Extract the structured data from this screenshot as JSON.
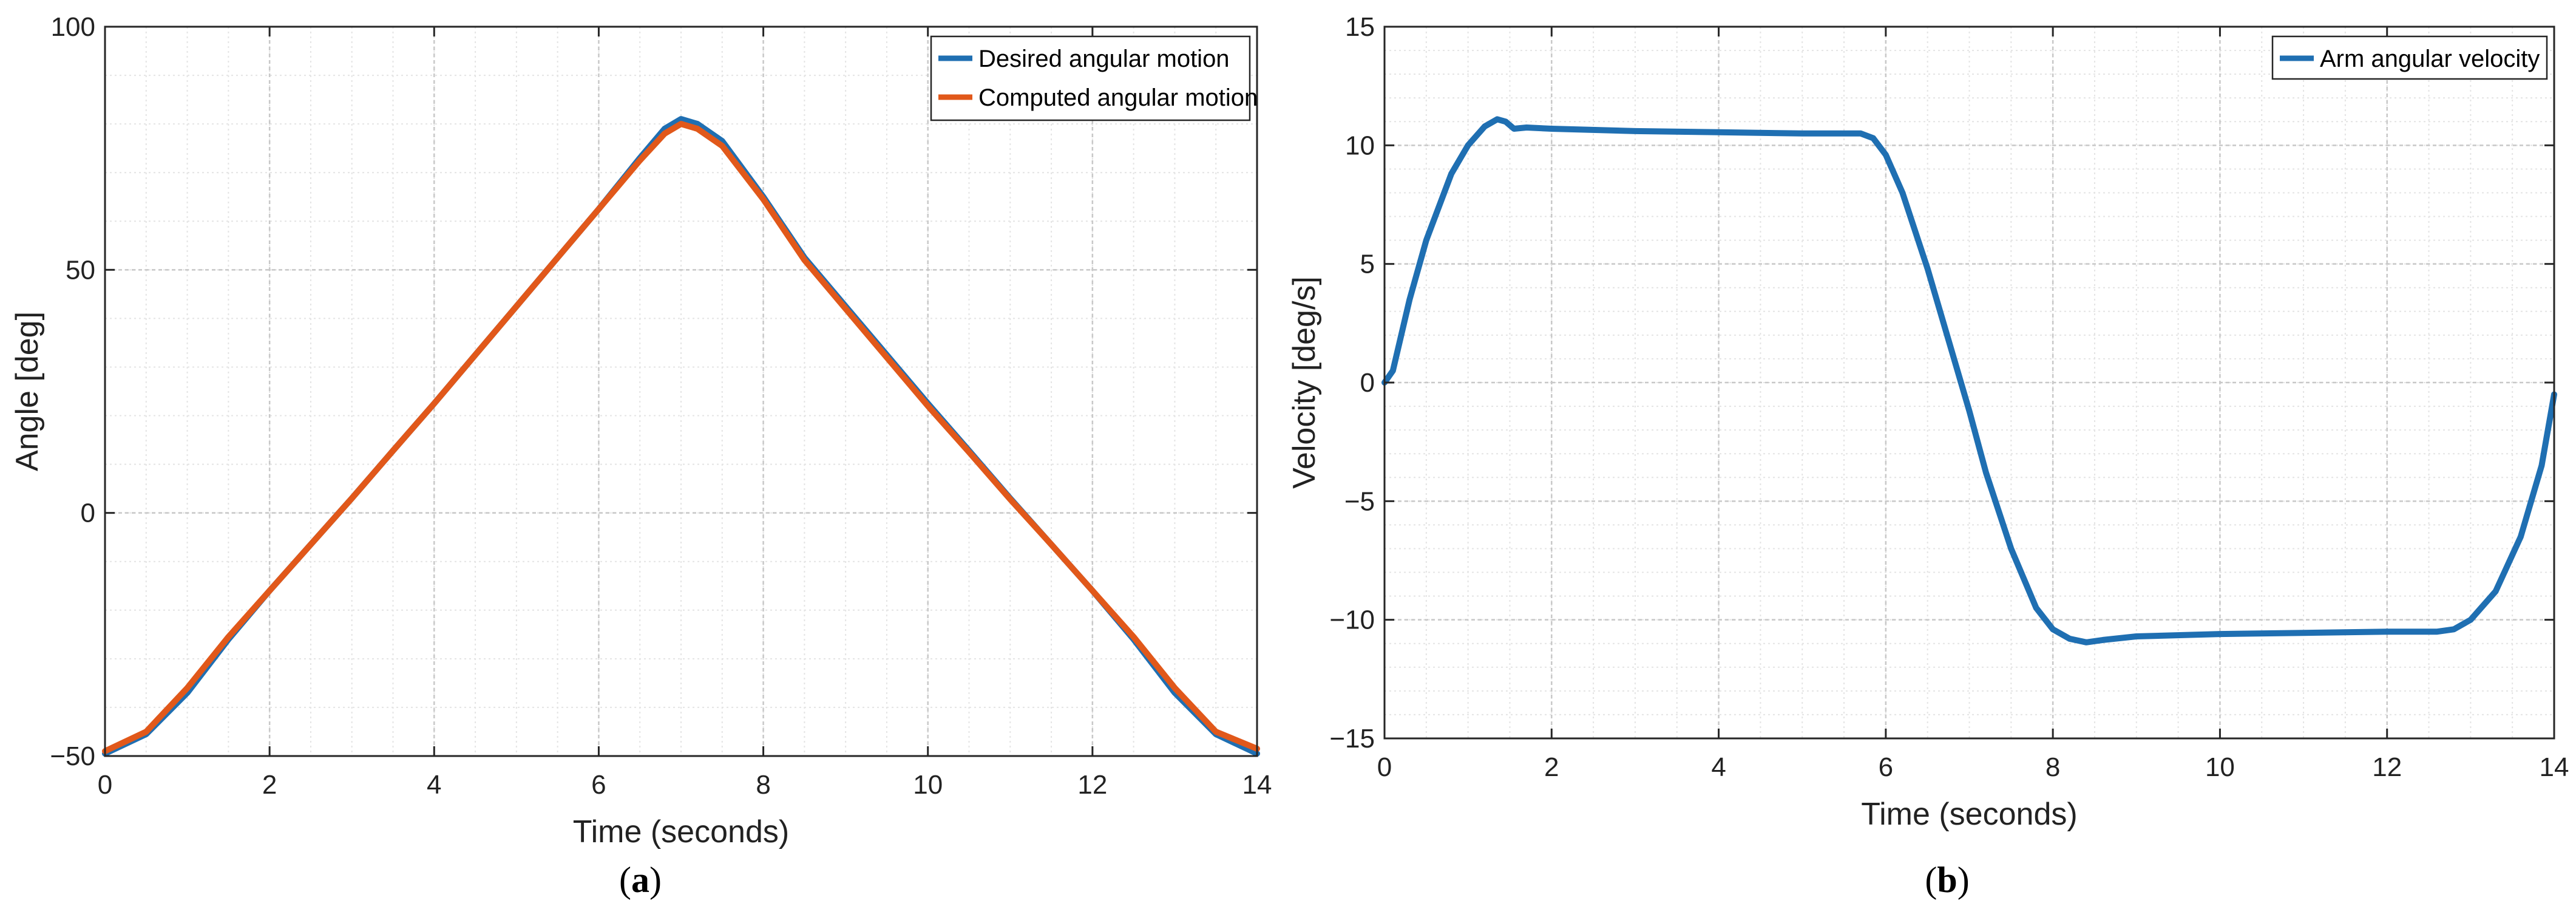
{
  "colors": {
    "desired": "#1f6fb2",
    "computed": "#e1581a",
    "velocity": "#1f6fb2",
    "grid_major": "#c8c8c8",
    "grid_minor": "#e4e4e4",
    "axis": "#262626"
  },
  "chart_data": [
    {
      "panel_label": "a",
      "type": "line",
      "title": "",
      "xlabel": "Time (seconds)",
      "ylabel": "Angle [deg]",
      "xlim": [
        0,
        14
      ],
      "ylim": [
        -50,
        100
      ],
      "xticks": [
        0,
        2,
        4,
        6,
        8,
        10,
        12,
        14
      ],
      "yticks": [
        -50,
        0,
        50,
        100
      ],
      "xtick_labels": [
        "0",
        "2",
        "4",
        "6",
        "8",
        "10",
        "12",
        "14"
      ],
      "ytick_labels": [
        "−50",
        "0",
        "50",
        "100"
      ],
      "grid": true,
      "minor_grid": true,
      "legend_position": "top-right",
      "series": [
        {
          "name": "Desired angular motion",
          "color_key": "desired",
          "x": [
            0,
            0.5,
            1,
            1.5,
            2,
            2.5,
            3,
            3.5,
            4,
            4.5,
            5,
            5.5,
            6,
            6.5,
            6.8,
            7,
            7.2,
            7.5,
            8,
            8.5,
            9,
            9.5,
            10,
            10.5,
            11,
            11.5,
            12,
            12.5,
            13,
            13.5,
            14
          ],
          "y": [
            -49.5,
            -45.5,
            -37,
            -26,
            -16,
            -6.5,
            3,
            12.8,
            22.5,
            32.5,
            42.5,
            52.5,
            62.5,
            73,
            79,
            81,
            80,
            76.5,
            65,
            52.5,
            42.5,
            32.5,
            22.5,
            12.8,
            3,
            -6.5,
            -16,
            -26,
            -37,
            -45.5,
            -49.5
          ]
        },
        {
          "name": "Computed angular motion",
          "color_key": "computed",
          "x": [
            0,
            0.5,
            1,
            1.5,
            2,
            2.5,
            3,
            3.5,
            4,
            4.5,
            5,
            5.5,
            6,
            6.5,
            6.8,
            7,
            7.2,
            7.5,
            8,
            8.5,
            9,
            9.5,
            10,
            10.5,
            11,
            11.5,
            12,
            12.5,
            13,
            13.5,
            14
          ],
          "y": [
            -49,
            -45,
            -36,
            -25.5,
            -16,
            -6.5,
            3,
            12.8,
            22.5,
            32.5,
            42.5,
            52.5,
            62.5,
            72.5,
            78,
            80,
            79,
            75.5,
            64.5,
            52,
            42,
            32,
            22,
            12.5,
            2.8,
            -6.5,
            -16,
            -25.5,
            -36,
            -45,
            -48.5
          ]
        }
      ]
    },
    {
      "panel_label": "b",
      "type": "line",
      "title": "",
      "xlabel": "Time (seconds)",
      "ylabel": "Velocity [deg/s]",
      "xlim": [
        0,
        14
      ],
      "ylim": [
        -15,
        15
      ],
      "xticks": [
        0,
        2,
        4,
        6,
        8,
        10,
        12,
        14
      ],
      "yticks": [
        -15,
        -10,
        -5,
        0,
        5,
        10,
        15
      ],
      "xtick_labels": [
        "0",
        "2",
        "4",
        "6",
        "8",
        "10",
        "12",
        "14"
      ],
      "ytick_labels": [
        "−15",
        "−10",
        "−5",
        "0",
        "5",
        "10",
        "15"
      ],
      "grid": true,
      "minor_grid": true,
      "legend_position": "top-right",
      "series": [
        {
          "name": "Arm angular velocity",
          "color_key": "velocity",
          "x": [
            0,
            0.1,
            0.3,
            0.5,
            0.8,
            1.0,
            1.2,
            1.35,
            1.45,
            1.55,
            1.7,
            2.0,
            3.0,
            4.0,
            5.0,
            5.5,
            5.7,
            5.85,
            6.0,
            6.2,
            6.5,
            6.8,
            7.0,
            7.2,
            7.5,
            7.8,
            8.0,
            8.2,
            8.4,
            8.6,
            9.0,
            10.0,
            11.0,
            12.0,
            12.6,
            12.8,
            13.0,
            13.3,
            13.6,
            13.85,
            14.0
          ],
          "y": [
            0,
            0.5,
            3.5,
            6,
            8.8,
            10,
            10.8,
            11.1,
            11.0,
            10.7,
            10.75,
            10.7,
            10.6,
            10.55,
            10.5,
            10.5,
            10.5,
            10.3,
            9.6,
            8,
            4.8,
            1.2,
            -1.2,
            -3.8,
            -7,
            -9.5,
            -10.4,
            -10.8,
            -10.95,
            -10.85,
            -10.7,
            -10.6,
            -10.55,
            -10.5,
            -10.5,
            -10.4,
            -10,
            -8.8,
            -6.5,
            -3.5,
            -0.5
          ]
        }
      ]
    }
  ]
}
